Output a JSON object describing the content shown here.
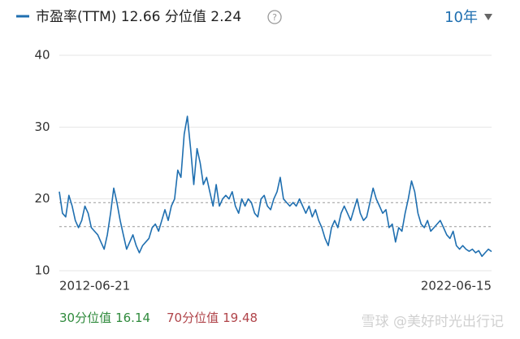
{
  "chart_data": {
    "type": "line",
    "title": "市盈率(TTM) 12.66 分位值 2.24",
    "help_icon": "?",
    "period": "10年",
    "categories": [
      "2012-06-21",
      null,
      null,
      null,
      null,
      null,
      null,
      null,
      null,
      null,
      null,
      null,
      null,
      null,
      null,
      null,
      null,
      null,
      null,
      null,
      null,
      null,
      null,
      null,
      null,
      null,
      null,
      null,
      null,
      null,
      null,
      null,
      null,
      null,
      null,
      null,
      null,
      null,
      null,
      null,
      null,
      null,
      null,
      null,
      null,
      null,
      null,
      null,
      null,
      null,
      null,
      null,
      null,
      null,
      null,
      null,
      null,
      null,
      null,
      null,
      null,
      null,
      null,
      null,
      null,
      null,
      null,
      null,
      null,
      null,
      null,
      null,
      null,
      null,
      null,
      null,
      null,
      null,
      null,
      null,
      null,
      null,
      null,
      null,
      null,
      null,
      null,
      null,
      null,
      null,
      null,
      null,
      null,
      null,
      null,
      null,
      null,
      null,
      null,
      null,
      null,
      null,
      null,
      null,
      null,
      null,
      null,
      null,
      null,
      null,
      null,
      null,
      null,
      null,
      null,
      null,
      null,
      null,
      null,
      null,
      null,
      null,
      null,
      null,
      null,
      null,
      null,
      null,
      null,
      null,
      null,
      null,
      null,
      null,
      null,
      "2022-06-15"
    ],
    "series": [
      {
        "name": "市盈率(TTM)",
        "color": "#1f6fb0",
        "values": [
          21,
          18,
          17.5,
          20.5,
          19,
          17,
          16,
          17,
          19,
          18,
          16,
          15.5,
          15,
          14,
          13,
          15,
          18,
          21.5,
          19.5,
          17,
          15,
          13,
          14,
          15,
          13.5,
          12.5,
          13.5,
          14,
          14.5,
          16,
          16.5,
          15.5,
          17,
          18.5,
          17,
          19,
          20,
          24,
          23,
          29,
          31.5,
          27,
          22,
          27,
          25,
          22,
          23,
          21,
          19,
          22,
          19,
          20,
          20.5,
          20,
          21,
          19,
          18,
          20,
          19,
          20,
          19.5,
          18,
          17.5,
          20,
          20.5,
          19,
          18.5,
          20,
          21,
          23,
          20,
          19.5,
          19,
          19.5,
          19,
          20,
          19,
          18,
          19,
          17.5,
          18.5,
          17,
          16,
          14.5,
          13.5,
          16,
          17,
          16,
          18,
          19,
          18,
          17,
          18.5,
          20,
          18,
          17,
          17.5,
          19.5,
          21.5,
          20,
          19,
          18,
          18.5,
          16,
          16.5,
          14,
          16,
          15.5,
          18,
          20,
          22.5,
          21,
          18,
          16.5,
          16,
          17,
          15.5,
          16,
          16.5,
          17,
          16,
          15,
          14.5,
          15.5,
          13.5,
          13,
          13.5,
          13,
          12.7,
          13,
          12.5,
          12.8,
          12,
          12.5,
          13,
          12.66
        ]
      }
    ],
    "ylim": [
      10,
      40
    ],
    "yticks": [
      10,
      20,
      30,
      40
    ],
    "grid": true,
    "reference_lines": [
      {
        "label": "30分位值",
        "value": 16.14,
        "color": "#2f8a3c"
      },
      {
        "label": "70分位值",
        "value": 19.48,
        "color": "#b0444a"
      }
    ],
    "watermark": "雪球 @美好时光出行记"
  }
}
